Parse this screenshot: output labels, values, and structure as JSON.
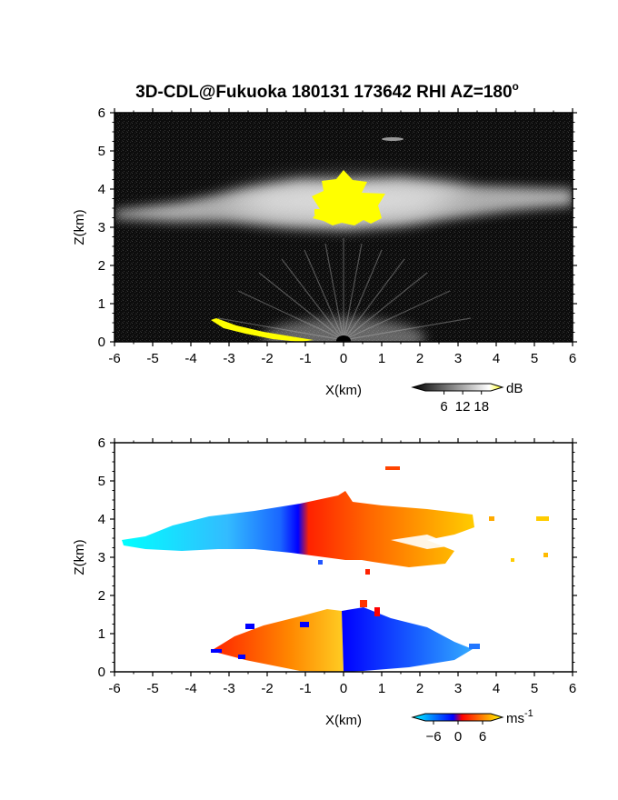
{
  "title": "3D-CDL@Fukuoka 180131 173642 RHI AZ=180",
  "title_degree": "o",
  "chart_data": [
    {
      "type": "heatmap",
      "name": "reflectivity",
      "x_range": [
        -6,
        6
      ],
      "y_range": [
        0,
        6
      ],
      "xlabel": "X(km)",
      "ylabel": "Z(km)",
      "x_ticks": [
        -6,
        -5,
        -4,
        -3,
        -2,
        -1,
        0,
        1,
        2,
        3,
        4,
        5,
        6
      ],
      "y_ticks": [
        0,
        1,
        2,
        3,
        4,
        5,
        6
      ],
      "colorbar": {
        "unit": "dB",
        "ticks": [
          6,
          12,
          18
        ],
        "range": [
          0,
          21
        ],
        "colors": [
          "#000000",
          "#ffffff",
          "#ffff00"
        ]
      },
      "features": [
        {
          "kind": "cloud_layer",
          "x": [
            -6,
            6
          ],
          "z": [
            3.0,
            4.1
          ],
          "value_db": 9
        },
        {
          "kind": "saturated_core",
          "x": [
            -0.7,
            1.1
          ],
          "z": [
            3.1,
            4.5
          ],
          "value_db": 21
        },
        {
          "kind": "near_ground_beams",
          "x": [
            -3,
            3
          ],
          "z": [
            0,
            1.5
          ],
          "value_db": 6
        },
        {
          "kind": "saturated_ground_line",
          "x": [
            -3.5,
            -0.7
          ],
          "z": [
            0.05,
            0.55
          ],
          "value_db": 21
        }
      ]
    },
    {
      "type": "heatmap",
      "name": "doppler_velocity",
      "x_range": [
        -6,
        6
      ],
      "y_range": [
        0,
        6
      ],
      "xlabel": "X(km)",
      "ylabel": "Z(km)",
      "x_ticks": [
        -6,
        -5,
        -4,
        -3,
        -2,
        -1,
        0,
        1,
        2,
        3,
        4,
        5,
        6
      ],
      "y_ticks": [
        0,
        1,
        2,
        3,
        4,
        5,
        6
      ],
      "colorbar": {
        "unit": "ms",
        "unit_exponent": "-1",
        "ticks": [
          -6,
          0,
          6
        ],
        "range": [
          -8,
          8
        ],
        "colors": [
          "#00ffff",
          "#0000ff",
          "#ff0000",
          "#ffff00"
        ]
      },
      "features": [
        {
          "kind": "upper_layer_negative",
          "x": [
            -5.5,
            0.6
          ],
          "z": [
            2.9,
            4.6
          ],
          "velocity": -5
        },
        {
          "kind": "upper_layer_positive",
          "x": [
            0.4,
            5.5
          ],
          "z": [
            2.8,
            4.4
          ],
          "velocity": 5
        },
        {
          "kind": "lower_layer_positive",
          "x": [
            -3.5,
            0.2
          ],
          "z": [
            0,
            1.6
          ],
          "velocity": 5
        },
        {
          "kind": "lower_layer_negative",
          "x": [
            0,
            3.5
          ],
          "z": [
            0,
            1.7
          ],
          "velocity": -4
        }
      ]
    }
  ]
}
